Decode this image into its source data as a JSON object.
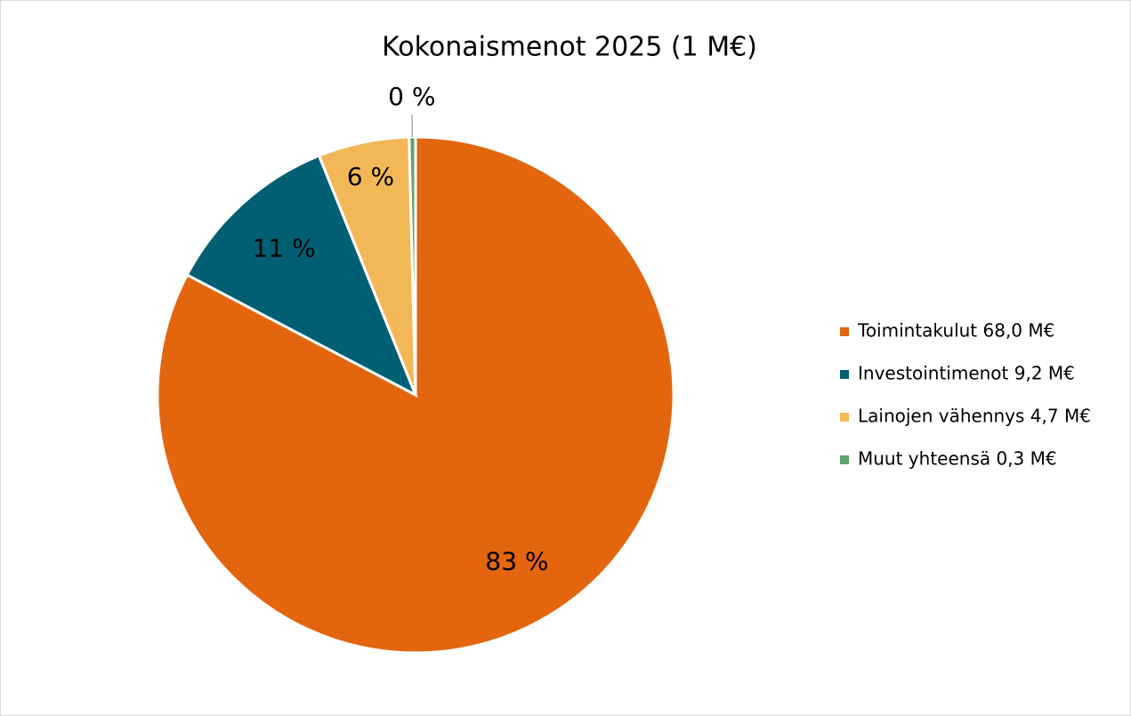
{
  "chart_data": {
    "type": "pie",
    "title": "Kokonaismenot 2025 (1 M€)",
    "categories": [
      "Toimintakulut 68,0 M€",
      "Investointimenot 9,2 M€",
      "Lainojen vähennys 4,7 M€",
      "Muut yhteensä 0,3 M€"
    ],
    "values": [
      82.7,
      11.2,
      5.7,
      0.4
    ],
    "value_labels": [
      "83 %",
      "11 %",
      "6 %",
      "0 %"
    ],
    "colors": [
      "#e3650e",
      "#005f73",
      "#f2b857",
      "#5ba56e"
    ],
    "legend": "right"
  }
}
